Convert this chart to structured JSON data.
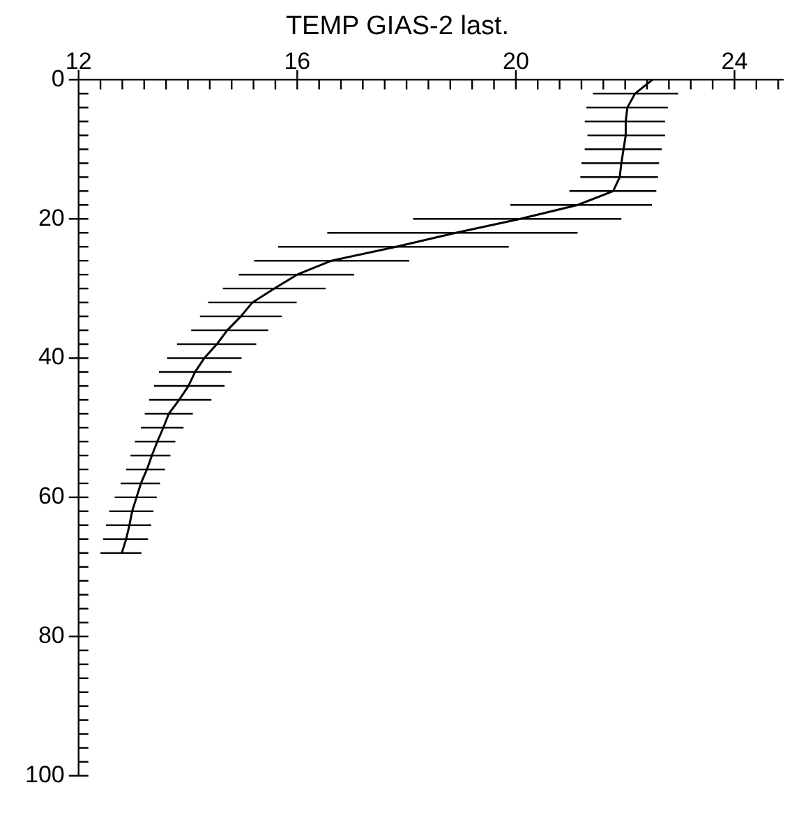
{
  "chart_data": {
    "type": "line",
    "title": "TEMP GIAS-2 last.",
    "marker": "none",
    "grid": false,
    "legend": false,
    "xlim": [
      12,
      24.9
    ],
    "xticks": [
      12,
      {
        "value": 12.4,
        "label": null
      },
      {
        "value": 12.8,
        "label": null
      },
      {
        "value": 13.2,
        "label": null
      },
      {
        "value": 13.6,
        "label": null
      },
      {
        "value": 14,
        "label": null
      },
      {
        "value": 14.4,
        "label": null
      },
      {
        "value": 14.8,
        "label": null
      },
      {
        "value": 15.2,
        "label": null
      },
      {
        "value": 15.6,
        "label": null
      },
      16,
      {
        "value": 16.4,
        "label": null
      },
      {
        "value": 16.8,
        "label": null
      },
      {
        "value": 17.2,
        "label": null
      },
      {
        "value": 17.6,
        "label": null
      },
      {
        "value": 18,
        "label": null
      },
      {
        "value": 18.4,
        "label": null
      },
      {
        "value": 18.8,
        "label": null
      },
      {
        "value": 19.2,
        "label": null
      },
      {
        "value": 19.6,
        "label": null
      },
      20,
      {
        "value": 20.4,
        "label": null
      },
      {
        "value": 20.8,
        "label": null
      },
      {
        "value": 21.2,
        "label": null
      },
      {
        "value": 21.6,
        "label": null
      },
      {
        "value": 22,
        "label": null
      },
      {
        "value": 22.4,
        "label": null
      },
      {
        "value": 22.8,
        "label": null
      },
      {
        "value": 23.2,
        "label": null
      },
      {
        "value": 23.6,
        "label": null
      },
      24,
      {
        "value": 24.4,
        "label": null
      },
      {
        "value": 24.8,
        "label": null
      }
    ],
    "ylim": [
      100,
      0
    ],
    "yticks": [
      0,
      {
        "value": 2,
        "label": null
      },
      {
        "value": 4,
        "label": null
      },
      {
        "value": 6,
        "label": null
      },
      {
        "value": 8,
        "label": null
      },
      {
        "value": 10,
        "label": null
      },
      {
        "value": 12,
        "label": null
      },
      {
        "value": 14,
        "label": null
      },
      {
        "value": 16,
        "label": null
      },
      {
        "value": 18,
        "label": null
      },
      20,
      {
        "value": 22,
        "label": null
      },
      {
        "value": 24,
        "label": null
      },
      {
        "value": 26,
        "label": null
      },
      {
        "value": 28,
        "label": null
      },
      {
        "value": 30,
        "label": null
      },
      {
        "value": 32,
        "label": null
      },
      {
        "value": 34,
        "label": null
      },
      {
        "value": 36,
        "label": null
      },
      {
        "value": 38,
        "label": null
      },
      40,
      {
        "value": 42,
        "label": null
      },
      {
        "value": 44,
        "label": null
      },
      {
        "value": 46,
        "label": null
      },
      {
        "value": 48,
        "label": null
      },
      {
        "value": 50,
        "label": null
      },
      {
        "value": 52,
        "label": null
      },
      {
        "value": 54,
        "label": null
      },
      {
        "value": 56,
        "label": null
      },
      {
        "value": 58,
        "label": null
      },
      60,
      {
        "value": 62,
        "label": null
      },
      {
        "value": 64,
        "label": null
      },
      {
        "value": 66,
        "label": null
      },
      {
        "value": 68,
        "label": null
      },
      {
        "value": 70,
        "label": null
      },
      {
        "value": 72,
        "label": null
      },
      {
        "value": 74,
        "label": null
      },
      {
        "value": 76,
        "label": null
      },
      {
        "value": 78,
        "label": null
      },
      80,
      {
        "value": 82,
        "label": null
      },
      {
        "value": 84,
        "label": null
      },
      {
        "value": 86,
        "label": null
      },
      {
        "value": 88,
        "label": null
      },
      {
        "value": 90,
        "label": null
      },
      {
        "value": 92,
        "label": null
      },
      {
        "value": 94,
        "label": null
      },
      {
        "value": 96,
        "label": null
      },
      {
        "value": 98,
        "label": null
      },
      100
    ],
    "series": [
      {
        "color": "#000000",
        "line_style": "solid",
        "x": [
          22.5,
          22.18,
          22.04,
          22.01,
          22.01,
          21.97,
          21.93,
          21.9,
          21.78,
          21.13,
          20.08,
          18.9,
          17.81,
          16.63,
          16.0,
          15.58,
          15.18,
          14.97,
          14.72,
          14.53,
          14.3,
          14.13,
          14.01,
          13.84,
          13.65,
          13.55,
          13.44,
          13.34,
          13.25,
          13.14,
          13.06,
          12.98,
          12.93,
          12.87,
          12.79
        ],
        "values": [
          0,
          2,
          4,
          6,
          8,
          10,
          12,
          14,
          16,
          18,
          20,
          22,
          24,
          26,
          28,
          30,
          32,
          34,
          36,
          38,
          40,
          42,
          44,
          46,
          48,
          50,
          52,
          54,
          56,
          58,
          60,
          62,
          64,
          66,
          68
        ],
        "xerrors": [
          null,
          [
            21.41,
            22.97
          ],
          [
            21.29,
            22.78
          ],
          [
            21.26,
            22.73
          ],
          [
            21.31,
            22.73
          ],
          [
            21.26,
            22.67
          ],
          [
            21.2,
            22.62
          ],
          [
            21.18,
            22.6
          ],
          [
            20.98,
            22.57
          ],
          [
            19.9,
            22.49
          ],
          [
            18.12,
            21.93
          ],
          [
            16.55,
            21.13
          ],
          [
            15.65,
            19.87
          ],
          [
            15.21,
            18.05
          ],
          [
            14.93,
            17.04
          ],
          [
            14.64,
            16.52
          ],
          [
            14.37,
            15.99
          ],
          [
            14.22,
            15.72
          ],
          [
            14.06,
            15.47
          ],
          [
            13.8,
            15.25
          ],
          [
            13.62,
            14.98
          ],
          [
            13.47,
            14.8
          ],
          [
            13.38,
            14.67
          ],
          [
            13.29,
            14.43
          ],
          [
            13.21,
            14.09
          ],
          [
            13.14,
            13.92
          ],
          [
            13.03,
            13.77
          ],
          [
            12.95,
            13.68
          ],
          [
            12.87,
            13.58
          ],
          [
            12.77,
            13.49
          ],
          [
            12.66,
            13.43
          ],
          [
            12.56,
            13.37
          ],
          [
            12.5,
            13.33
          ],
          [
            12.45,
            13.27
          ],
          [
            12.4,
            13.15
          ]
        ]
      }
    ]
  }
}
